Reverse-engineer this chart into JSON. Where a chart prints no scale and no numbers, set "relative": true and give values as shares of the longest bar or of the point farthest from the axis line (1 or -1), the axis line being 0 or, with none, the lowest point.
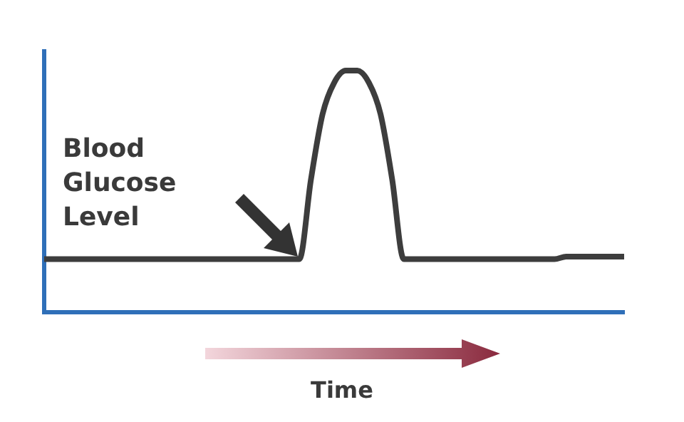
{
  "chart_data": {
    "type": "line",
    "xlabel": "Time",
    "ylabel": "Blood Glucose Level",
    "relative": true,
    "grid": false,
    "legend": false,
    "marker": "none",
    "tick_labels": false,
    "categories": [
      null,
      null,
      null,
      null,
      null,
      null,
      null,
      null,
      null,
      null,
      null,
      null,
      null,
      null,
      null,
      null,
      null,
      null,
      null,
      null,
      null,
      null,
      null,
      null,
      null,
      null,
      null,
      null,
      null,
      null,
      null,
      null,
      null,
      null,
      null,
      null,
      null,
      null,
      null,
      null,
      null,
      null,
      null,
      null,
      null,
      null,
      null,
      null,
      null,
      null,
      null
    ],
    "series": [
      {
        "color": "#3d3d3d",
        "values": [
          0.22,
          0.22,
          0.22,
          0.22,
          0.22,
          0.22,
          0.22,
          0.22,
          0.22,
          0.22,
          0.22,
          0.22,
          0.22,
          0.22,
          0.22,
          0.22,
          0.22,
          0.22,
          0.22,
          0.22,
          0.22,
          0.22,
          0.22,
          0.55,
          0.82,
          0.95,
          1,
          1,
          0.95,
          0.82,
          0.55,
          0.22,
          0.22,
          0.22,
          0.22,
          0.22,
          0.22,
          0.22,
          0.22,
          0.22,
          0.22,
          0.22,
          0.22,
          0.22,
          0.22,
          0.23,
          0.23,
          0.23,
          0.23,
          0.23,
          0.23
        ]
      }
    ]
  }
}
